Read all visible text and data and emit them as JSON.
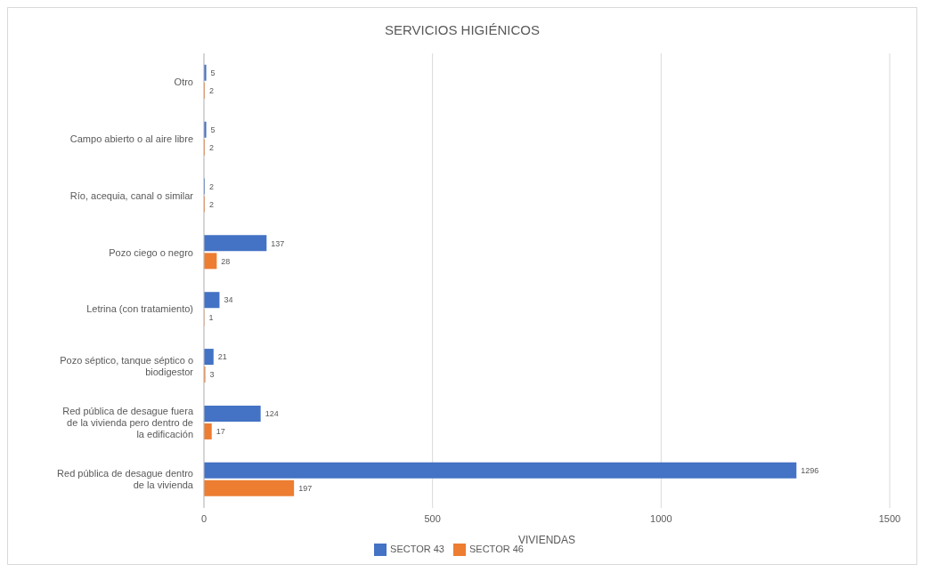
{
  "chart_data": {
    "type": "bar",
    "orientation": "horizontal",
    "title": "SERVICIOS HIGIÉNICOS",
    "xlabel": "VIVIENDAS",
    "categories": [
      "Otro",
      "Campo abierto o al aire libre",
      "Río, acequia, canal o similar",
      "Pozo ciego o negro",
      "Letrina (con tratamiento)",
      "Pozo séptico, tanque séptico o biodigestor",
      "Red pública de desague fuera de la vivienda pero dentro de la edificación",
      "Red pública de desague dentro de la vivienda"
    ],
    "series": [
      {
        "name": "SECTOR 43",
        "color": "#4472c4",
        "values": [
          5,
          5,
          2,
          137,
          34,
          21,
          124,
          1296
        ]
      },
      {
        "name": "SECTOR 46",
        "color": "#ed7d31",
        "values": [
          2,
          2,
          2,
          28,
          1,
          3,
          17,
          197
        ]
      }
    ],
    "xlim": [
      0,
      1500
    ],
    "xticks": [
      0,
      500,
      1000,
      1500
    ],
    "grid": "x",
    "legend": "bottom",
    "data_labels": true
  }
}
